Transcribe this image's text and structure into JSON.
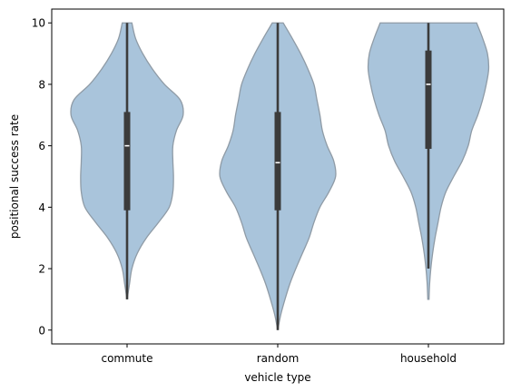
{
  "chart_data": {
    "type": "violin",
    "xlabel": "vehicle type",
    "ylabel": "positional success rate",
    "ylim": [
      -0.45,
      10.45
    ],
    "yticks": [
      0,
      2,
      4,
      6,
      8,
      10
    ],
    "categories": [
      "commute",
      "random",
      "household"
    ],
    "grid": false,
    "colors": {
      "violin_fill": "#a9c4db",
      "violin_edge": "#8f9ba6",
      "box": "#3b3b3b",
      "median": "#ffffff"
    },
    "violins": [
      {
        "category": "commute",
        "min": 1,
        "q1": 3.9,
        "median": 6,
        "q3": 7.1,
        "max": 10,
        "density": [
          [
            1,
            0.0
          ],
          [
            1.5,
            0.04
          ],
          [
            2,
            0.08
          ],
          [
            2.5,
            0.17
          ],
          [
            3,
            0.32
          ],
          [
            3.5,
            0.52
          ],
          [
            4,
            0.7
          ],
          [
            4.5,
            0.76
          ],
          [
            5,
            0.77
          ],
          [
            5.5,
            0.76
          ],
          [
            6,
            0.76
          ],
          [
            6.5,
            0.82
          ],
          [
            7,
            0.93
          ],
          [
            7.5,
            0.88
          ],
          [
            8,
            0.62
          ],
          [
            8.5,
            0.42
          ],
          [
            9,
            0.26
          ],
          [
            9.5,
            0.14
          ],
          [
            10,
            0.08
          ]
        ]
      },
      {
        "category": "random",
        "min": 0,
        "q1": 3.9,
        "median": 5.45,
        "q3": 7.1,
        "max": 10,
        "density": [
          [
            0,
            0.0
          ],
          [
            0.5,
            0.05
          ],
          [
            1,
            0.12
          ],
          [
            1.5,
            0.2
          ],
          [
            2,
            0.3
          ],
          [
            2.5,
            0.41
          ],
          [
            3,
            0.52
          ],
          [
            3.5,
            0.6
          ],
          [
            4,
            0.7
          ],
          [
            4.5,
            0.85
          ],
          [
            5,
            0.96
          ],
          [
            5.5,
            0.93
          ],
          [
            6,
            0.82
          ],
          [
            6.5,
            0.74
          ],
          [
            7,
            0.7
          ],
          [
            7.5,
            0.65
          ],
          [
            8,
            0.6
          ],
          [
            8.5,
            0.5
          ],
          [
            9,
            0.38
          ],
          [
            9.5,
            0.24
          ],
          [
            10,
            0.09
          ]
        ]
      },
      {
        "category": "household",
        "min": 2,
        "q1": 5.9,
        "median": 8,
        "q3": 9.1,
        "max": 10,
        "density": [
          [
            1,
            0.01
          ],
          [
            1.5,
            0.02
          ],
          [
            2,
            0.04
          ],
          [
            2.5,
            0.07
          ],
          [
            3,
            0.11
          ],
          [
            3.5,
            0.16
          ],
          [
            4,
            0.21
          ],
          [
            4.5,
            0.29
          ],
          [
            5,
            0.42
          ],
          [
            5.5,
            0.56
          ],
          [
            6,
            0.66
          ],
          [
            6.5,
            0.72
          ],
          [
            7,
            0.82
          ],
          [
            7.5,
            0.9
          ],
          [
            8,
            0.96
          ],
          [
            8.5,
            1.0
          ],
          [
            9,
            0.98
          ],
          [
            9.5,
            0.9
          ],
          [
            10,
            0.8
          ]
        ]
      }
    ]
  }
}
